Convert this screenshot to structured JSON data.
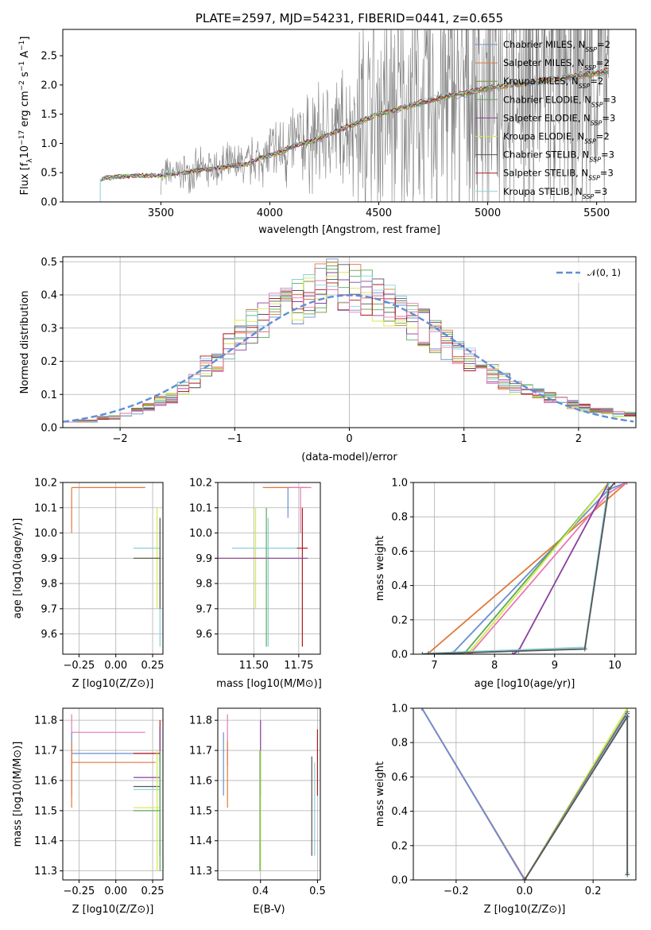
{
  "series_colors": {
    "Chabrier MILES": "#6a8fcf",
    "Salpeter MILES": "#e0793a",
    "Kroupa MILES": "#7a8f3a",
    "Chabrier ELODIE": "#5aa85a",
    "Salpeter ELODIE": "#8a3fa0",
    "Kroupa ELODIE": "#d8e84a",
    "Chabrier STELIB": "#555555",
    "Salpeter STELIB": "#b0181e",
    "Kroupa STELIB": "#88d0d8",
    "gauss": "#5b8fd6",
    "pink": "#e87ab4"
  },
  "chart_data": [
    {
      "id": "spectrum",
      "type": "line",
      "title": "PLATE=2597, MJD=54231, FIBERID=0441, z=0.655",
      "xlabel": "wavelength [Angstrom, rest frame]",
      "ylabel_parts": [
        "Flux [f",
        "λ",
        "10",
        "−17",
        " erg cm",
        "−2",
        " s",
        "−1",
        " A",
        "−1",
        "]"
      ],
      "xlim": [
        3050,
        5680
      ],
      "ylim": [
        0,
        2.95
      ],
      "xticks": [
        "3500",
        "4000",
        "4500",
        "5000",
        "5500"
      ],
      "xtick_values": [
        3500,
        4000,
        4500,
        5000,
        5500
      ],
      "yticks": [
        "0.0",
        "0.5",
        "1.0",
        "1.5",
        "2.0",
        "2.5"
      ],
      "ytick_values": [
        0,
        0.5,
        1.0,
        1.5,
        2.0,
        2.5
      ],
      "legend": [
        {
          "name": "Chabrier MILES",
          "nssp": "2"
        },
        {
          "name": "Salpeter MILES",
          "nssp": "2"
        },
        {
          "name": "Kroupa MILES",
          "nssp": "2"
        },
        {
          "name": "Chabrier ELODIE",
          "nssp": "3"
        },
        {
          "name": "Salpeter ELODIE",
          "nssp": "3"
        },
        {
          "name": "Kroupa ELODIE",
          "nssp": "2"
        },
        {
          "name": "Chabrier STELIB",
          "nssp": "3"
        },
        {
          "name": "Salpeter STELIB",
          "nssp": "3"
        },
        {
          "name": "Kroupa STELIB",
          "nssp": "3"
        }
      ],
      "legend_nssp_label": "N",
      "legend_nssp_sub": "SSP",
      "model_continuum": [
        [
          3220,
          0.0
        ],
        [
          3225,
          0.4
        ],
        [
          3300,
          0.43
        ],
        [
          3400,
          0.45
        ],
        [
          3500,
          0.45
        ],
        [
          3550,
          0.48
        ],
        [
          3600,
          0.5
        ],
        [
          3700,
          0.55
        ],
        [
          3800,
          0.6
        ],
        [
          3900,
          0.65
        ],
        [
          3950,
          0.75
        ],
        [
          4000,
          0.8
        ],
        [
          4050,
          0.85
        ],
        [
          4100,
          0.95
        ],
        [
          4200,
          1.05
        ],
        [
          4300,
          1.2
        ],
        [
          4400,
          1.35
        ],
        [
          4500,
          1.5
        ],
        [
          4600,
          1.6
        ],
        [
          4700,
          1.7
        ],
        [
          4800,
          1.8
        ],
        [
          4900,
          1.85
        ],
        [
          5000,
          1.95
        ],
        [
          5100,
          2.0
        ],
        [
          5200,
          2.05
        ],
        [
          5300,
          2.1
        ],
        [
          5400,
          2.15
        ],
        [
          5500,
          2.2
        ],
        [
          5560,
          2.25
        ]
      ],
      "data_start": 3500,
      "data_end": 5560
    },
    {
      "id": "residuals",
      "type": "line",
      "xlabel": "(data-model)/error",
      "ylabel": "Normed distribution",
      "xlim": [
        -2.5,
        2.5
      ],
      "ylim": [
        0,
        0.515
      ],
      "xticks": [
        "−2",
        "−1",
        "0",
        "1",
        "2"
      ],
      "xtick_values": [
        -2,
        -1,
        0,
        1,
        2
      ],
      "yticks": [
        "0.0",
        "0.1",
        "0.2",
        "0.3",
        "0.4",
        "0.5"
      ],
      "ytick_values": [
        0,
        0.1,
        0.2,
        0.3,
        0.4,
        0.5
      ],
      "gauss_label": "𝒩(0, 1)",
      "bin_width": 0.1,
      "hist_base": [
        0.02,
        0.02,
        0.02,
        0.03,
        0.03,
        0.04,
        0.05,
        0.06,
        0.08,
        0.09,
        0.12,
        0.14,
        0.18,
        0.2,
        0.24,
        0.28,
        0.3,
        0.32,
        0.35,
        0.36,
        0.38,
        0.4,
        0.42,
        0.43,
        0.42,
        0.41,
        0.4,
        0.38,
        0.36,
        0.34,
        0.32,
        0.3,
        0.27,
        0.25,
        0.22,
        0.2,
        0.18,
        0.16,
        0.14,
        0.12,
        0.11,
        0.1,
        0.09,
        0.08,
        0.07,
        0.06,
        0.05,
        0.05,
        0.04,
        0.04
      ]
    },
    {
      "id": "age-vs-Z",
      "type": "scatter",
      "xlabel": "Z [log10(Z/Z⊙)]",
      "ylabel": "age  [log10(age/yr)]",
      "xlim": [
        -0.36,
        0.32
      ],
      "ylim": [
        9.52,
        10.2
      ],
      "xticks": [
        "−0.25",
        "0.00",
        "0.25"
      ],
      "xtick_values": [
        -0.25,
        0.0,
        0.25
      ],
      "yticks": [
        "9.6",
        "9.7",
        "9.8",
        "9.9",
        "10.0",
        "10.1",
        "10.2"
      ],
      "ytick_values": [
        9.6,
        9.7,
        9.8,
        9.9,
        10.0,
        10.1,
        10.2
      ],
      "points": [
        {
          "s": "Salpeter MILES",
          "x": -0.3,
          "y": 10.18,
          "xl": -0.3,
          "xh": 0.2,
          "yl": 10.0,
          "yh": 10.18
        },
        {
          "s": "Kroupa STELIB",
          "x": 0.3,
          "y": 9.94,
          "xl": 0.12,
          "xh": 0.3,
          "yl": 9.55,
          "yh": 10.06
        },
        {
          "s": "Kroupa ELODIE",
          "x": 0.28,
          "y": 9.9,
          "xl": 0.12,
          "xh": 0.3,
          "yl": 9.7,
          "yh": 10.1
        },
        {
          "s": "Chabrier STELIB",
          "x": 0.3,
          "y": 9.9,
          "xl": 0.12,
          "xh": 0.3,
          "yl": 9.7,
          "yh": 10.06
        }
      ]
    },
    {
      "id": "age-vs-mass",
      "type": "scatter",
      "xlabel": "mass [log10(M/M⊙)]",
      "ylabel": "",
      "xlim": [
        11.3,
        11.87
      ],
      "ylim": [
        9.52,
        10.2
      ],
      "xticks": [
        "11.50",
        "11.75"
      ],
      "xtick_values": [
        11.5,
        11.75
      ],
      "yticks": [
        "9.6",
        "9.7",
        "9.8",
        "9.9",
        "10.0",
        "10.1",
        "10.2"
      ],
      "ytick_values": [
        9.6,
        9.7,
        9.8,
        9.9,
        10.0,
        10.1,
        10.2
      ],
      "points": [
        {
          "s": "Salpeter MILES",
          "x": 11.66,
          "y": 10.18,
          "xl": 11.55,
          "xh": 11.8,
          "yl": 10.18,
          "yh": 10.18
        },
        {
          "s": "pink",
          "x": 11.76,
          "y": 10.18,
          "xl": 11.7,
          "xh": 11.82,
          "yl": 10.0,
          "yh": 10.18
        },
        {
          "s": "Chabrier MILES",
          "x": 11.69,
          "y": 10.18,
          "xl": 11.69,
          "xh": 11.69,
          "yl": 10.06,
          "yh": 10.18
        },
        {
          "s": "Kroupa STELIB",
          "x": 11.58,
          "y": 9.94,
          "xl": 11.38,
          "xh": 11.74,
          "yl": 9.55,
          "yh": 10.06
        },
        {
          "s": "Kroupa ELODIE",
          "x": 11.51,
          "y": 9.9,
          "xl": 11.3,
          "xh": 11.66,
          "yl": 9.7,
          "yh": 10.1
        },
        {
          "s": "Salpeter STELIB",
          "x": 11.77,
          "y": 9.94,
          "xl": 11.74,
          "xh": 11.8,
          "yl": 9.55,
          "yh": 10.1
        },
        {
          "s": "Salpeter ELODIE",
          "x": 11.6,
          "y": 9.9,
          "xl": 11.3,
          "xh": 11.8,
          "yl": 9.9,
          "yh": 9.9
        },
        {
          "s": "Chabrier ELODIE",
          "x": 11.57,
          "y": 9.9,
          "xl": 11.57,
          "xh": 11.57,
          "yl": 9.55,
          "yh": 10.1
        }
      ]
    },
    {
      "id": "mass-weight-vs-age",
      "type": "line",
      "xlabel": "age  [log10(age/yr)]",
      "ylabel": "mass weight",
      "xlim": [
        6.65,
        10.35
      ],
      "ylim": [
        0,
        1.0
      ],
      "xticks": [
        "7",
        "8",
        "9",
        "10"
      ],
      "xtick_values": [
        7,
        8,
        9,
        10
      ],
      "yticks": [
        "0.0",
        "0.2",
        "0.4",
        "0.6",
        "0.8",
        "1.0"
      ],
      "ytick_values": [
        0,
        0.2,
        0.4,
        0.6,
        0.8,
        1.0
      ],
      "lines": [
        {
          "s": "Salpeter MILES",
          "pts": [
            [
              6.8,
              0
            ],
            [
              6.9,
              0.005
            ],
            [
              10.2,
              1.0
            ]
          ]
        },
        {
          "s": "Chabrier MILES",
          "pts": [
            [
              7.2,
              0
            ],
            [
              7.3,
              0.005
            ],
            [
              9.9,
              0.96
            ],
            [
              10.2,
              1.0
            ]
          ]
        },
        {
          "s": "pink",
          "pts": [
            [
              7.5,
              0
            ],
            [
              7.6,
              0.005
            ],
            [
              9.9,
              0.94
            ],
            [
              10.2,
              1.0
            ]
          ]
        },
        {
          "s": "Chabrier ELODIE",
          "pts": [
            [
              7.4,
              0
            ],
            [
              7.5,
              0.005
            ],
            [
              9.9,
              1.0
            ]
          ]
        },
        {
          "s": "Kroupa ELODIE",
          "pts": [
            [
              7.5,
              0
            ],
            [
              7.6,
              0.02
            ],
            [
              9.9,
              1.0
            ]
          ]
        },
        {
          "s": "Salpeter ELODIE",
          "pts": [
            [
              8.3,
              0
            ],
            [
              8.4,
              0.02
            ],
            [
              9.9,
              1.0
            ]
          ]
        },
        {
          "s": "Kroupa STELIB",
          "pts": [
            [
              6.8,
              0
            ],
            [
              6.9,
              0.005
            ],
            [
              9.5,
              0.04
            ],
            [
              9.9,
              1.0
            ]
          ]
        },
        {
          "s": "Chabrier STELIB",
          "pts": [
            [
              6.8,
              0
            ],
            [
              6.9,
              0.002
            ],
            [
              9.5,
              0.03
            ],
            [
              9.9,
              0.96
            ],
            [
              10.0,
              1.0
            ]
          ]
        }
      ]
    },
    {
      "id": "mass-vs-Z",
      "type": "scatter",
      "xlabel": "Z [log10(Z/Z⊙)]",
      "ylabel": "mass [log10(M/M⊙)]",
      "xlim": [
        -0.36,
        0.32
      ],
      "ylim": [
        11.27,
        11.84
      ],
      "xticks": [
        "−0.25",
        "0.00",
        "0.25"
      ],
      "xtick_values": [
        -0.25,
        0.0,
        0.25
      ],
      "yticks": [
        "11.3",
        "11.4",
        "11.5",
        "11.6",
        "11.7",
        "11.8"
      ],
      "ytick_values": [
        11.3,
        11.4,
        11.5,
        11.6,
        11.7,
        11.8
      ],
      "points": [
        {
          "s": "pink",
          "x": -0.3,
          "y": 11.76,
          "xl": -0.3,
          "xh": 0.2,
          "yl": 11.65,
          "yh": 11.82
        },
        {
          "s": "Chabrier MILES",
          "x": -0.3,
          "y": 11.69,
          "xl": -0.3,
          "xh": 0.3,
          "yl": 11.55,
          "yh": 11.76
        },
        {
          "s": "Salpeter MILES",
          "x": -0.3,
          "y": 11.66,
          "xl": -0.3,
          "xh": 0.27,
          "yl": 11.51,
          "yh": 11.73
        },
        {
          "s": "Salpeter STELIB",
          "x": 0.3,
          "y": 11.69,
          "xl": 0.12,
          "xh": 0.3,
          "yl": 11.68,
          "yh": 11.8
        },
        {
          "s": "Salpeter ELODIE",
          "x": 0.3,
          "y": 11.61,
          "xl": 0.12,
          "xh": 0.3,
          "yl": 11.55,
          "yh": 11.78
        },
        {
          "s": "Chabrier STELIB",
          "x": 0.3,
          "y": 11.58,
          "xl": 0.12,
          "xh": 0.3,
          "yl": 11.35,
          "yh": 11.68
        },
        {
          "s": "Kroupa STELIB",
          "x": 0.3,
          "y": 11.57,
          "xl": 0.12,
          "xh": 0.3,
          "yl": 11.35,
          "yh": 11.66
        },
        {
          "s": "Kroupa ELODIE",
          "x": 0.28,
          "y": 11.51,
          "xl": 0.12,
          "xh": 0.3,
          "yl": 11.3,
          "yh": 11.7
        },
        {
          "s": "Chabrier ELODIE",
          "x": 0.3,
          "y": 11.5,
          "xl": 0.12,
          "xh": 0.3,
          "yl": 11.3,
          "yh": 11.7
        }
      ]
    },
    {
      "id": "mass-vs-ebv",
      "type": "scatter",
      "xlabel": "E(B-V)",
      "ylabel": "",
      "xlim": [
        0.325,
        0.505
      ],
      "ylim": [
        11.27,
        11.84
      ],
      "xticks": [
        "0.4",
        "0.5"
      ],
      "xtick_values": [
        0.4,
        0.5
      ],
      "yticks": [
        "11.3",
        "11.4",
        "11.5",
        "11.6",
        "11.7",
        "11.8"
      ],
      "ytick_values": [
        11.3,
        11.4,
        11.5,
        11.6,
        11.7,
        11.8
      ],
      "points": [
        {
          "s": "Chabrier MILES",
          "x": 0.335,
          "y": 11.69,
          "yl": 11.55,
          "yh": 11.76
        },
        {
          "s": "pink",
          "x": 0.342,
          "y": 11.76,
          "yl": 11.65,
          "yh": 11.82
        },
        {
          "s": "Salpeter MILES",
          "x": 0.342,
          "y": 11.66,
          "yl": 11.51,
          "yh": 11.73
        },
        {
          "s": "Salpeter ELODIE",
          "x": 0.4,
          "y": 11.61,
          "yl": 11.55,
          "yh": 11.8
        },
        {
          "s": "Kroupa ELODIE",
          "x": 0.4,
          "y": 11.51,
          "yl": 11.3,
          "yh": 11.7
        },
        {
          "s": "Chabrier ELODIE",
          "x": 0.399,
          "y": 11.5,
          "yl": 11.3,
          "yh": 11.7
        },
        {
          "s": "Chabrier STELIB",
          "x": 0.49,
          "y": 11.58,
          "yl": 11.35,
          "yh": 11.68
        },
        {
          "s": "Kroupa STELIB",
          "x": 0.495,
          "y": 11.57,
          "yl": 11.35,
          "yh": 11.66
        },
        {
          "s": "Salpeter STELIB",
          "x": 0.5,
          "y": 11.69,
          "yl": 11.55,
          "yh": 11.77
        }
      ]
    },
    {
      "id": "mass-weight-vs-Z",
      "type": "line",
      "xlabel": "Z [log10(Z/Z⊙)]",
      "ylabel": "mass weight",
      "xlim": [
        -0.325,
        0.325
      ],
      "ylim": [
        0,
        1.0
      ],
      "xticks": [
        "−0.2",
        "0.0",
        "0.2"
      ],
      "xtick_values": [
        -0.2,
        0.0,
        0.2
      ],
      "yticks": [
        "0.0",
        "0.2",
        "0.4",
        "0.6",
        "0.8",
        "1.0"
      ],
      "ytick_values": [
        0,
        0.2,
        0.4,
        0.6,
        0.8,
        1.0
      ],
      "lines": [
        {
          "s": "Salpeter MILES",
          "pts": [
            [
              -0.3,
              1.0
            ],
            [
              0.0,
              0.005
            ]
          ]
        },
        {
          "s": "pink",
          "pts": [
            [
              -0.3,
              1.0
            ],
            [
              0.0,
              0.0
            ]
          ]
        },
        {
          "s": "Chabrier MILES",
          "pts": [
            [
              -0.3,
              1.0
            ],
            [
              0.0,
              0.0
            ]
          ]
        },
        {
          "s": "Kroupa ELODIE",
          "pts": [
            [
              0.0,
              0.0
            ],
            [
              0.3,
              1.0
            ]
          ]
        },
        {
          "s": "Chabrier ELODIE",
          "pts": [
            [
              0.0,
              0.0
            ],
            [
              0.3,
              0.98
            ]
          ]
        },
        {
          "s": "Salpeter ELODIE",
          "pts": [
            [
              0.0,
              0.0
            ],
            [
              0.3,
              0.97
            ]
          ]
        },
        {
          "s": "Kroupa STELIB",
          "pts": [
            [
              0.0,
              0.0
            ],
            [
              0.3,
              0.96
            ],
            [
              0.3,
              0.04
            ]
          ]
        },
        {
          "s": "Chabrier STELIB",
          "pts": [
            [
              0.0,
              0.0
            ],
            [
              0.3,
              0.95
            ],
            [
              0.3,
              0.03
            ]
          ]
        }
      ]
    }
  ]
}
